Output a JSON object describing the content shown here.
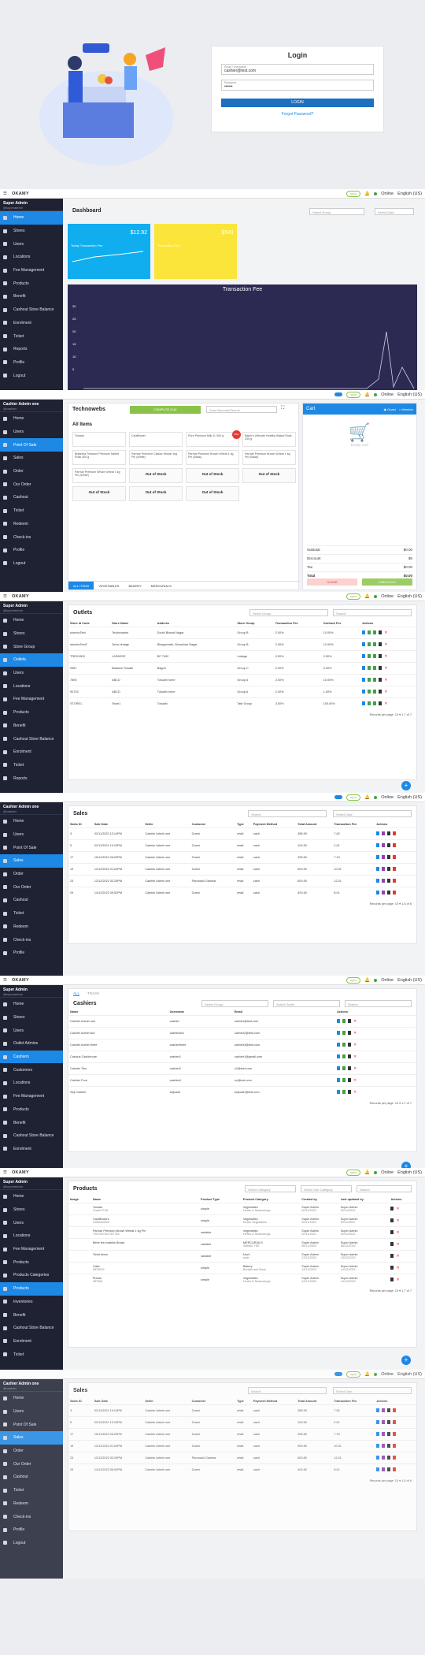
{
  "login": {
    "title": "Login",
    "email_label": "Email / Username",
    "email_value": "cashier@test.com",
    "password_label": "Password",
    "password_value": "••••••",
    "button": "LOGIN",
    "forgot": "Forgot Password?"
  },
  "top": {
    "brand": "OKAMY",
    "sync": "sync",
    "online": "Online",
    "lang_label": "Select Language",
    "lang": "English (US)"
  },
  "dashboard": {
    "admin": "Super Admin",
    "admin_sub": "@superadmin",
    "nav": [
      "Home",
      "Stores",
      "Users",
      "Locations",
      "Fee Management",
      "Products",
      "Benefit",
      "Cashout Store Balance",
      "Enrolment",
      "Ticket",
      "Reports",
      "Profile",
      "Logout"
    ],
    "title": "Dashboard",
    "group": "Select Group",
    "date": "Select Date",
    "tile1_value": "$12.92",
    "tile1_label": "Today Transaction Fee",
    "tile2_value": "$541",
    "tile2_label": "Transaction Fee",
    "chart_title": "Transaction Fee",
    "y_ticks": [
      "30",
      "25",
      "20",
      "15",
      "10",
      "5"
    ]
  },
  "pos": {
    "cashier": "Cashier Admin one",
    "cashier_sub": "@cashier",
    "nav": [
      "Home",
      "Users",
      "Point Of Sale",
      "Sales",
      "Order",
      "Our Order",
      "Cashout",
      "Ticket",
      "Redeem",
      "Check-ins",
      "Profile",
      "Logout"
    ],
    "store": "Technowebs",
    "compute": "COMPUTE DUE",
    "scan": "Scan Barcode/Search",
    "items_title": "All Items",
    "items": [
      "Tomato",
      "Cauliflower",
      "Pure Premium Milk 1L 500 g",
      "Baker's Ultimate Healthy Baked Rusk 335 g",
      "Britannia Treasure Premium Salted Rusk 300 g",
      "Parmar Premium Classic Wheat 1kg Pin (White)",
      "Parmar Premium Brown Wheat 1 kg Pin (Black)",
      "Parmar Premium Brown Wheat 1 kg Pin (Black)",
      "Parmar Premium Whole Wheat 1 kg Pin (White)",
      "Out of Stock",
      "Out of Stock",
      "Out of Stock",
      "Out of Stock",
      "Out of Stock",
      "Out of Stock"
    ],
    "offer": "Offer",
    "tabs": [
      "ALL ITEMS",
      "VEGETABLES",
      "BAKERY",
      "MERCURIALS"
    ],
    "cart": "Cart",
    "guest": "Guest",
    "member": "Member",
    "empty": "Empty Cart",
    "totals": [
      [
        "Subtotal",
        "$0.00"
      ],
      [
        "Discount",
        "$0"
      ],
      [
        "Tax",
        "$0.00"
      ],
      [
        "Total",
        "$0.00"
      ]
    ],
    "clear": "CLEAR",
    "checkout": "CHECKOUT"
  },
  "outlets": {
    "title": "Outlets",
    "group": "Select Group",
    "search": "Search",
    "cols": [
      "Store Id Code",
      "Store Name",
      "Address",
      "Store Group",
      "Transaction Fee",
      "Cashout Fee",
      "Actions"
    ],
    "rows": [
      [
        "storeboTest",
        "Technowebs",
        "South Bharat Nagar",
        "Group B",
        "2.00%",
        "10.00%"
      ],
      [
        "storeboTest2",
        "Zeba vintage",
        "Bhagavnath, Nirvachan Nagar",
        "Group B",
        "2.00%",
        "10.00%"
      ],
      [
        "TRED1500",
        "LAFARGE",
        "BP 7492",
        "Lafarge",
        "0.50%",
        "0.50%"
      ],
      [
        "0987",
        "Balance Tomate",
        "Bagori",
        "Group C",
        "2.00%",
        "0.00%"
      ],
      [
        "7890",
        "ABCD",
        "Tulsaihi rome",
        "Group A",
        "2.00%",
        "10.00%"
      ],
      [
        "90703",
        "ABCD",
        "Tulsaihi rome",
        "Group A",
        "2.00%",
        "1.00%"
      ],
      [
        "STORE1",
        "Store1",
        "Tulsaihi",
        "Tate Group",
        "3.00%",
        "100.00%"
      ]
    ],
    "records": "Records per page:  10  ▾     1-7 of 7"
  },
  "sales": {
    "title": "Sales",
    "search": "Search",
    "date": "Select Date",
    "cols": [
      "Sales ID",
      "Sale Date",
      "Seller",
      "Customer",
      "Type",
      "Payment Method",
      "Total Amount",
      "Transaction Fee",
      "Actions"
    ],
    "rows": [
      [
        "3",
        "02/11/2022 10:14PM",
        "Cashier Admin one",
        "Guest",
        "retail",
        "cash",
        "385.99",
        "7.62"
      ],
      [
        "5",
        "02/11/2022 10:15PM",
        "Cashier Admin one",
        "Guest",
        "retail",
        "cash",
        "100.50",
        "2.01"
      ],
      [
        "17",
        "16/11/2022 06:00PM",
        "Cashier Admin one",
        "Guest",
        "retail",
        "cash",
        "395.60",
        "7.19"
      ],
      [
        "19",
        "12/12/2022 01:00PM",
        "Cashier Admin one",
        "Guest",
        "retail",
        "cash",
        "500.50",
        "10.01"
      ],
      [
        "23",
        "12/12/2022 02:25PM",
        "Cashier Admin one",
        "Panowski Gambar",
        "retail",
        "cash",
        "600.50",
        "12.01"
      ],
      [
        "29",
        "14/12/2022 05:52PM",
        "Cashier Admin one",
        "Guest",
        "retail",
        "cash",
        "400.50",
        "8.01"
      ]
    ],
    "records": "Records per page:  10  ▾     1-6 of 6"
  },
  "cashiers": {
    "tabs": [
      "ALL",
      "TRASH"
    ],
    "title": "Cashiers",
    "group": "Select Group",
    "outlet": "Select Outlet",
    "search": "Search",
    "nav": [
      "Home",
      "Stores",
      "Users",
      "Outlet Admins",
      "Cashiers",
      "Customers",
      "Locations",
      "Fee Management",
      "Products",
      "Benefit",
      "Cashout Store Balance",
      "Enrolment"
    ],
    "cols": [
      "Name",
      "Username",
      "Email",
      "Actions"
    ],
    "rows": [
      [
        "Cashier Admin one",
        "cashier",
        "cashier@test.com"
      ],
      [
        "Cashier Admin two",
        "cashiertwo",
        "cashier2@test.com"
      ],
      [
        "Cashier Admin three",
        "cashierthree",
        "cashier3@test.com"
      ],
      [
        "Cassius Cashierone",
        "cashier1",
        "cashier1@gmail.com"
      ],
      [
        "Cashier Two",
        "cashier2",
        "c2@test.com"
      ],
      [
        "Cashier Four",
        "cashier4",
        "cc@test.com"
      ],
      [
        "Seji Cashier",
        "sejicash",
        "sejicash@test.com"
      ]
    ],
    "records": "Records per page:  10  ▾     1-7 of 7"
  },
  "products": {
    "title": "Products",
    "category": "Select Category",
    "subcategory": "Select Sub Category",
    "search": "Search",
    "nav": [
      "Home",
      "Stores",
      "Users",
      "Locations",
      "Fee Management",
      "Products",
      "Products Categories",
      "Products",
      "Inventories",
      "Benefit",
      "Cashout Store Balance",
      "Enrolment",
      "Ticket"
    ],
    "cols": [
      "Image",
      "Name",
      "Product Type",
      "Product Category",
      "Created by",
      "Last updated by",
      "Actions"
    ],
    "rows": [
      [
        "Tomato\nCode/CT45",
        "simple",
        "Vegetables\nHerbs & Seasonings",
        "Super Admin\n02/11/2022",
        "Super Admin\n02/11/2022"
      ],
      [
        "Cauliflowers\n4150063300",
        "simple",
        "Vegetables\nExotic Vegetables",
        "Super Admin\n02/11/2022",
        "Super Admin\n02/11/2022"
      ],
      [
        "Parmar Premium Brown Wheat 1 kg Pin\n7957067821787783",
        "variable",
        "Vegetables\nHerbs & Seasonings",
        "Super Admin\n02/11/2022",
        "Super Admin\n02/11/2022"
      ],
      [
        "Bébé les enables Bread\n-",
        "variable",
        "MERCURIALS\nVidtello TSE",
        "Super Admin\n06/12/2022",
        "Super Admin\n06/12/2022"
      ],
      [
        "Tshirt items\n-",
        "variable",
        "Nov1\nnote",
        "Super Admin\n13/12/2022",
        "Super Admin\n13/12/2022"
      ],
      [
        "Cake\n9876532",
        "simple",
        "Bakery\nBreads and Buns",
        "Super Admin\n14/12/2022",
        "Super Admin\n14/12/2022"
      ],
      [
        "Pizzas\n987654",
        "simple",
        "Vegetables\nHerbs & Seasonings",
        "Super Admin\n14/12/2022",
        "Super Admin\n14/12/2022"
      ]
    ],
    "records": "Records per page:  10  ▾     1-7 of 7"
  }
}
